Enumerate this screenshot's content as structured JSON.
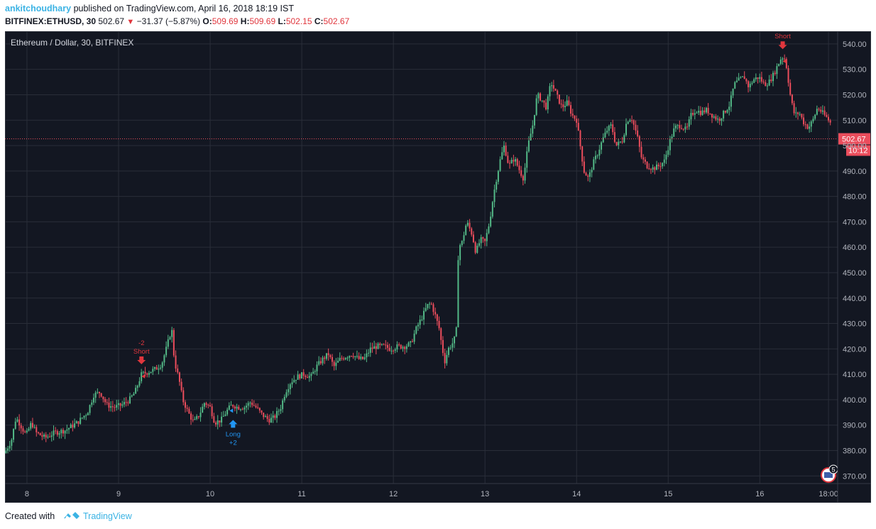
{
  "header": {
    "author": "ankitchoudhary",
    "published_text": "published on TradingView.com, April 16, 2018 18:19 IST",
    "symbol": "BITFINEX:ETHUSD, 30",
    "last": "502.67",
    "change": "−31.37 (−5.87%)",
    "o_label": "O:",
    "o_value": "509.69",
    "h_label": "H:",
    "h_value": "509.69",
    "l_label": "L:",
    "l_value": "502.15",
    "c_label": "C:",
    "c_value": "502.67"
  },
  "footer": {
    "created_with": "Created with",
    "brand": "TradingView"
  },
  "colors": {
    "background": "#131722",
    "grid": "#2a2e39",
    "up": "#53b987",
    "down": "#eb4d5c",
    "signal_short": "#e0363d",
    "signal_long": "#2196f3",
    "price_line": "#eb4d5c"
  },
  "chart_data": {
    "type": "candlestick",
    "title": "Ethereum / Dollar, 30, BITFINEX",
    "interval": "30",
    "ylim": [
      367,
      545
    ],
    "yticks": [
      370,
      380,
      390,
      400,
      410,
      420,
      430,
      440,
      450,
      460,
      470,
      480,
      490,
      500,
      510,
      520,
      530,
      540
    ],
    "ytick_labels": [
      "370.00",
      "380.00",
      "390.00",
      "400.00",
      "410.00",
      "420.00",
      "430.00",
      "440.00",
      "450.00",
      "460.00",
      "470.00",
      "480.00",
      "490.00",
      "500.00",
      "510.00",
      "520.00",
      "530.00",
      "540.00"
    ],
    "xticks": [
      {
        "label": "8",
        "day": 8
      },
      {
        "label": "9",
        "day": 9
      },
      {
        "label": "10",
        "day": 10
      },
      {
        "label": "11",
        "day": 11
      },
      {
        "label": "12",
        "day": 12
      },
      {
        "label": "13",
        "day": 13
      },
      {
        "label": "14",
        "day": 14
      },
      {
        "label": "15",
        "day": 15
      },
      {
        "label": "16",
        "day": 16
      },
      {
        "label": "18:00",
        "day": 16.75
      }
    ],
    "xlim_days": [
      7.76,
      16.85
    ],
    "series": [
      {
        "name": "BITFINEX:ETHUSD",
        "close_path": [
          [
            7.77,
            380
          ],
          [
            7.83,
            384
          ],
          [
            7.88,
            393
          ],
          [
            7.93,
            390
          ],
          [
            7.99,
            386
          ],
          [
            8.05,
            391
          ],
          [
            8.1,
            387
          ],
          [
            8.2,
            385
          ],
          [
            8.3,
            387
          ],
          [
            8.42,
            388
          ],
          [
            8.55,
            391
          ],
          [
            8.66,
            395
          ],
          [
            8.73,
            402
          ],
          [
            8.8,
            403
          ],
          [
            8.87,
            398
          ],
          [
            8.95,
            397
          ],
          [
            9.04,
            398
          ],
          [
            9.12,
            400
          ],
          [
            9.18,
            403
          ],
          [
            9.25,
            410
          ],
          [
            9.33,
            411
          ],
          [
            9.4,
            412
          ],
          [
            9.47,
            414
          ],
          [
            9.52,
            420
          ],
          [
            9.58,
            428
          ],
          [
            9.61,
            415
          ],
          [
            9.66,
            408
          ],
          [
            9.7,
            400
          ],
          [
            9.76,
            395
          ],
          [
            9.82,
            391
          ],
          [
            9.88,
            394
          ],
          [
            9.94,
            399
          ],
          [
            10.0,
            397
          ],
          [
            10.05,
            391
          ],
          [
            10.12,
            392
          ],
          [
            10.19,
            396
          ],
          [
            10.24,
            398
          ],
          [
            10.3,
            397
          ],
          [
            10.37,
            397
          ],
          [
            10.44,
            399
          ],
          [
            10.5,
            397
          ],
          [
            10.57,
            394
          ],
          [
            10.64,
            392
          ],
          [
            10.7,
            393
          ],
          [
            10.77,
            397
          ],
          [
            10.82,
            403
          ],
          [
            10.88,
            407
          ],
          [
            10.95,
            409
          ],
          [
            11.02,
            410
          ],
          [
            11.1,
            409
          ],
          [
            11.16,
            413
          ],
          [
            11.23,
            416
          ],
          [
            11.29,
            418
          ],
          [
            11.35,
            413
          ],
          [
            11.42,
            416
          ],
          [
            11.48,
            417
          ],
          [
            11.55,
            418
          ],
          [
            11.62,
            416
          ],
          [
            11.68,
            416
          ],
          [
            11.75,
            420
          ],
          [
            11.82,
            421
          ],
          [
            11.9,
            421
          ],
          [
            11.97,
            420
          ],
          [
            12.05,
            421
          ],
          [
            12.12,
            421
          ],
          [
            12.19,
            422
          ],
          [
            12.25,
            428
          ],
          [
            12.32,
            433
          ],
          [
            12.37,
            437
          ],
          [
            12.41,
            438
          ],
          [
            12.45,
            434
          ],
          [
            12.5,
            428
          ],
          [
            12.53,
            421
          ],
          [
            12.56,
            415
          ],
          [
            12.6,
            420
          ],
          [
            12.66,
            423
          ],
          [
            12.69,
            428
          ],
          [
            12.71,
            460
          ],
          [
            12.75,
            462
          ],
          [
            12.8,
            470
          ],
          [
            12.86,
            465
          ],
          [
            12.9,
            458
          ],
          [
            12.95,
            463
          ],
          [
            13.0,
            462
          ],
          [
            13.05,
            470
          ],
          [
            13.09,
            480
          ],
          [
            13.13,
            488
          ],
          [
            13.17,
            495
          ],
          [
            13.21,
            500
          ],
          [
            13.26,
            492
          ],
          [
            13.32,
            495
          ],
          [
            13.38,
            490
          ],
          [
            13.42,
            487
          ],
          [
            13.47,
            500
          ],
          [
            13.52,
            508
          ],
          [
            13.57,
            520
          ],
          [
            13.62,
            518
          ],
          [
            13.67,
            515
          ],
          [
            13.72,
            525
          ],
          [
            13.78,
            520
          ],
          [
            13.84,
            515
          ],
          [
            13.9,
            517
          ],
          [
            13.95,
            512
          ],
          [
            14.0,
            510
          ],
          [
            14.04,
            500
          ],
          [
            14.08,
            490
          ],
          [
            14.13,
            487
          ],
          [
            14.18,
            493
          ],
          [
            14.23,
            497
          ],
          [
            14.28,
            502
          ],
          [
            14.33,
            506
          ],
          [
            14.38,
            508
          ],
          [
            14.43,
            500
          ],
          [
            14.5,
            502
          ],
          [
            14.55,
            510
          ],
          [
            14.6,
            511
          ],
          [
            14.66,
            504
          ],
          [
            14.71,
            495
          ],
          [
            14.77,
            492
          ],
          [
            14.84,
            491
          ],
          [
            14.9,
            492
          ],
          [
            14.96,
            494
          ],
          [
            15.02,
            502
          ],
          [
            15.07,
            507
          ],
          [
            15.13,
            508
          ],
          [
            15.2,
            506
          ],
          [
            15.25,
            512
          ],
          [
            15.3,
            514
          ],
          [
            15.36,
            513
          ],
          [
            15.42,
            514
          ],
          [
            15.48,
            512
          ],
          [
            15.55,
            510
          ],
          [
            15.61,
            513
          ],
          [
            15.67,
            516
          ],
          [
            15.72,
            524
          ],
          [
            15.78,
            526
          ],
          [
            15.83,
            527
          ],
          [
            15.88,
            523
          ],
          [
            15.93,
            526
          ],
          [
            15.99,
            527
          ],
          [
            16.05,
            524
          ],
          [
            16.1,
            525
          ],
          [
            16.15,
            528
          ],
          [
            16.2,
            532
          ],
          [
            16.24,
            535
          ],
          [
            16.28,
            534
          ],
          [
            16.31,
            526
          ],
          [
            16.34,
            518
          ],
          [
            16.38,
            512
          ],
          [
            16.43,
            513
          ],
          [
            16.48,
            509
          ],
          [
            16.53,
            507
          ],
          [
            16.58,
            510
          ],
          [
            16.63,
            515
          ],
          [
            16.68,
            513
          ],
          [
            16.73,
            511
          ],
          [
            16.77,
            509
          ],
          [
            16.79,
            502.67
          ]
        ]
      }
    ],
    "annotations": [
      {
        "text": "-2",
        "day": 9.25,
        "price": 412,
        "kind": "short_size",
        "above": true
      },
      {
        "text": "Short",
        "day": 9.25,
        "price": 412,
        "kind": "short",
        "above": true
      },
      {
        "text": "Long",
        "day": 10.25,
        "price": 394,
        "kind": "long",
        "above": false
      },
      {
        "text": "+2",
        "day": 10.25,
        "price": 394,
        "kind": "long_size",
        "above": false
      },
      {
        "text": "Short",
        "day": 16.25,
        "price": 536,
        "kind": "short",
        "above": true
      }
    ],
    "last_price": 502.67,
    "last_price_label": "502.67",
    "countdown_label": "10:12",
    "badge_count": "5"
  }
}
